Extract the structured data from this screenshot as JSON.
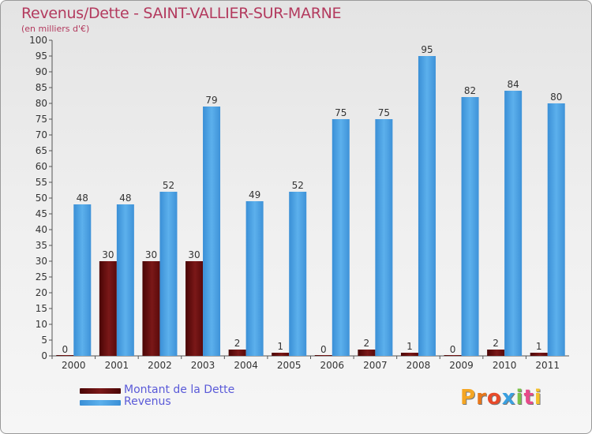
{
  "title": "Revenus/Dette - SAINT-VALLIER-SUR-MARNE",
  "subtitle": "(en milliers d'€)",
  "legend": [
    {
      "label": "Montant de la Dette",
      "color": "#7a1010"
    },
    {
      "label": "Revenus",
      "color": "#4a9fdf"
    }
  ],
  "logo": "Proxiti",
  "colors": {
    "title": "#b33a5e",
    "debt": "#7a1010",
    "revenue": "#4a9fdf",
    "legend_text": "#5a5ad8"
  },
  "chart_data": {
    "type": "bar",
    "categories": [
      "2000",
      "2001",
      "2002",
      "2003",
      "2004",
      "2005",
      "2006",
      "2007",
      "2008",
      "2009",
      "2010",
      "2011"
    ],
    "series": [
      {
        "name": "Montant de la Dette",
        "values": [
          0,
          30,
          30,
          30,
          2,
          1,
          0,
          2,
          1,
          0,
          2,
          1
        ]
      },
      {
        "name": "Revenus",
        "values": [
          48,
          48,
          52,
          79,
          49,
          52,
          75,
          75,
          95,
          82,
          84,
          80
        ]
      }
    ],
    "ylim": [
      0,
      100
    ],
    "yticks": [
      0,
      5,
      10,
      15,
      20,
      25,
      30,
      35,
      40,
      45,
      50,
      55,
      60,
      65,
      70,
      75,
      80,
      85,
      90,
      95,
      100
    ],
    "grid": false,
    "legend_position": "bottom-left"
  }
}
